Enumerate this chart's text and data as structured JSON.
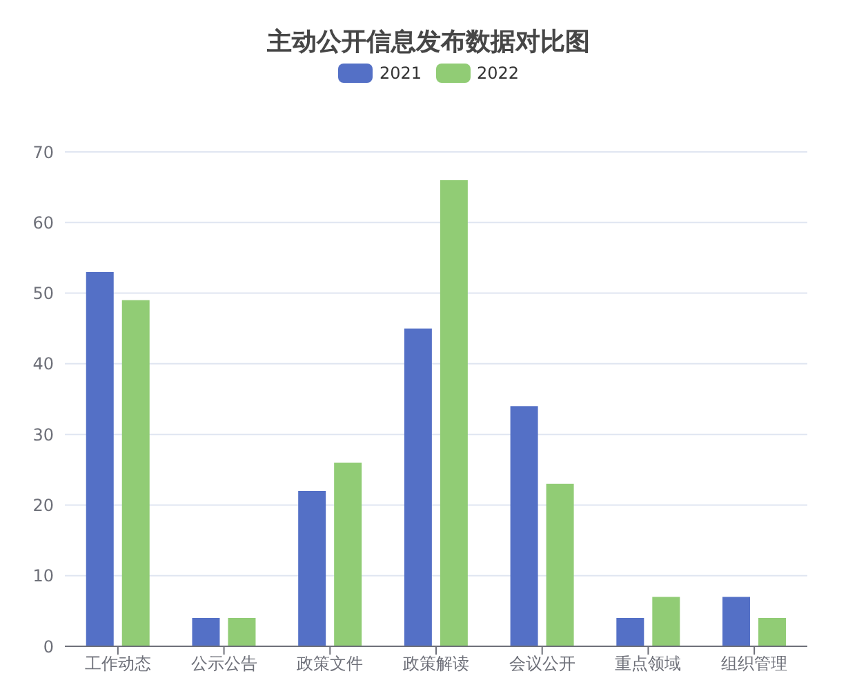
{
  "chart_data": {
    "type": "bar",
    "title": "主动公开信息发布数据对比图",
    "categories": [
      "工作动态",
      "公示公告",
      "政策文件",
      "政策解读",
      "会议公开",
      "重点领域",
      "组织管理"
    ],
    "series": [
      {
        "name": "2021",
        "color": "#5470c6",
        "values": [
          53,
          4,
          22,
          45,
          34,
          4,
          7
        ]
      },
      {
        "name": "2022",
        "color": "#91cc75",
        "values": [
          49,
          4,
          26,
          66,
          23,
          7,
          4
        ]
      }
    ],
    "ylim": [
      0,
      70
    ],
    "yticks": [
      0,
      10,
      20,
      30,
      40,
      50,
      60,
      70
    ],
    "grid": "y",
    "legend": "top"
  }
}
